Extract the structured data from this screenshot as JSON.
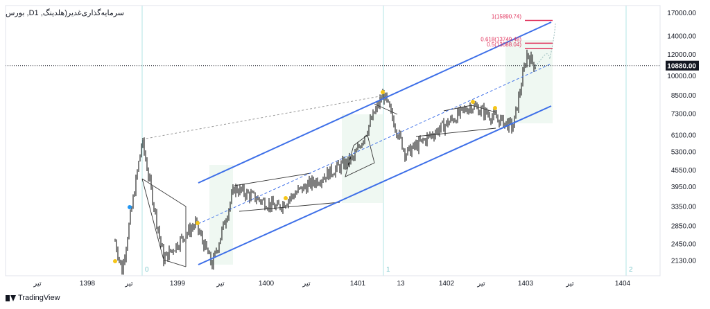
{
  "symbol_title": "بورس ,Dسرمایه‌گذاری‌غدیر(هلدینگ, 1",
  "brand": "TradingView",
  "last_price_label": "10880.00",
  "colors": {
    "channel": "#3d6fe8",
    "fib": "#e0305a",
    "cycle": "#b2e4e6",
    "price_tag_bg": "#131722",
    "marker": "#f5c518",
    "blue_marker": "#2196f3"
  },
  "cycle_labels": [
    "0",
    "1",
    "2"
  ],
  "fib_labels": [
    "1(15890.74)",
    "0.618(13749.48)",
    "0.5(13088.04)"
  ],
  "chart_data": {
    "type": "candlestick",
    "y_scale": "log",
    "ylim": [
      1870,
      18000
    ],
    "y_ticks": [
      "17000.00",
      "14000.00",
      "12000.00",
      "10000.00",
      "8500.00",
      "7300.00",
      "6100.00",
      "5300.00",
      "4550.00",
      "3950.00",
      "3350.00",
      "2850.00",
      "2450.00",
      "2130.00"
    ],
    "x_ticks": [
      "تیر",
      "1398",
      "تیر",
      "1399",
      "تیر",
      "1400",
      "تیر",
      "1401",
      "13",
      "1402",
      "تیر",
      "1403",
      "تیر",
      "1404"
    ],
    "last_price": 10880,
    "fib_levels": [
      15890.74,
      13749.48,
      13088.04
    ],
    "price_path": [
      [
        "1398 (early)",
        2500
      ],
      [
        "1398 (late)",
        1950
      ],
      [
        "late 1398",
        5800
      ],
      [
        "1399 (early)",
        2150
      ],
      [
        "1399 (mid)",
        2900
      ],
      [
        "1399 (late)",
        2050
      ],
      [
        "1400 (early)",
        3900
      ],
      [
        "1400 (mid)",
        3300
      ],
      [
        "1400 (late)",
        3800
      ],
      [
        "1401 (early)",
        5000
      ],
      [
        "1401 peak",
        8600
      ],
      [
        "1401 (late)",
        5200
      ],
      [
        "1402 (mid)",
        7800
      ],
      [
        "1402 (late)",
        6500
      ],
      [
        "1403 peak",
        12000
      ],
      [
        "1403 (last)",
        10880
      ]
    ]
  }
}
